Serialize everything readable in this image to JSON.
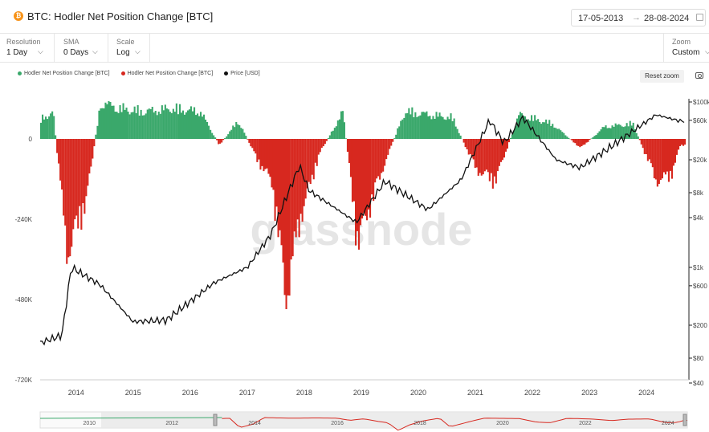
{
  "header": {
    "logo_glyph": "₿",
    "title": "BTC: Hodler Net Position Change [BTC]",
    "date_from": "17-05-2013",
    "date_to": "28-08-2024"
  },
  "controls": {
    "resolution": {
      "label": "Resolution",
      "value": "1 Day"
    },
    "sma": {
      "label": "SMA",
      "value": "0 Days"
    },
    "scale": {
      "label": "Scale",
      "value": "Log"
    },
    "zoom": {
      "label": "Zoom",
      "value": "Custom"
    }
  },
  "toolbar": {
    "reset_zoom_label": "Reset zoom"
  },
  "watermark": "glassnode",
  "chart_data": {
    "type": "bar",
    "title": "BTC: Hodler Net Position Change [BTC]",
    "series": [
      {
        "name": "Hodler Net Position Change [BTC]",
        "color": "#3aa86b",
        "kind": "positive bars"
      },
      {
        "name": "Hodler Net Position Change [BTC]",
        "color": "#d7281f",
        "kind": "negative bars"
      },
      {
        "name": "Price [USD]",
        "color": "#111111",
        "kind": "line",
        "axis": "right-log"
      }
    ],
    "x_ticks": [
      "2014",
      "2015",
      "2016",
      "2017",
      "2018",
      "2019",
      "2020",
      "2021",
      "2022",
      "2023",
      "2024"
    ],
    "y_left": {
      "ticks": [
        "0",
        "-240K",
        "-480K",
        "-720K"
      ],
      "values": [
        0,
        -240000,
        -480000,
        -720000
      ],
      "range": [
        -720000,
        120000
      ]
    },
    "y_right": {
      "scale": "log",
      "ticks": [
        "$100k",
        "$60k",
        "$20k",
        "$8k",
        "$4k",
        "$1k",
        "$600",
        "$200",
        "$80",
        "$40"
      ],
      "values": [
        100000,
        60000,
        20000,
        8000,
        4000,
        1000,
        600,
        200,
        80,
        40
      ],
      "range": [
        40,
        100000
      ]
    },
    "net_position_change": [
      {
        "date": "2013-05",
        "value": 60000
      },
      {
        "date": "2013-08",
        "value": 90000
      },
      {
        "date": "2013-11",
        "value": -380000
      },
      {
        "date": "2014-03",
        "value": -200000
      },
      {
        "date": "2014-06",
        "value": 120000
      },
      {
        "date": "2014-10",
        "value": 100000
      },
      {
        "date": "2015-03",
        "value": 90000
      },
      {
        "date": "2015-09",
        "value": 100000
      },
      {
        "date": "2016-03",
        "value": 90000
      },
      {
        "date": "2016-07",
        "value": -20000
      },
      {
        "date": "2016-11",
        "value": 60000
      },
      {
        "date": "2017-03",
        "value": -70000
      },
      {
        "date": "2017-06",
        "value": -140000
      },
      {
        "date": "2017-09",
        "value": -520000
      },
      {
        "date": "2017-12",
        "value": -260000
      },
      {
        "date": "2018-04",
        "value": -50000
      },
      {
        "date": "2018-09",
        "value": 90000
      },
      {
        "date": "2018-12",
        "value": -340000
      },
      {
        "date": "2019-06",
        "value": -70000
      },
      {
        "date": "2019-10",
        "value": 90000
      },
      {
        "date": "2020-03",
        "value": 80000
      },
      {
        "date": "2020-08",
        "value": 70000
      },
      {
        "date": "2021-01",
        "value": -100000
      },
      {
        "date": "2021-05",
        "value": -140000
      },
      {
        "date": "2021-10",
        "value": 80000
      },
      {
        "date": "2022-05",
        "value": 50000
      },
      {
        "date": "2022-11",
        "value": -30000
      },
      {
        "date": "2023-04",
        "value": 40000
      },
      {
        "date": "2023-10",
        "value": 50000
      },
      {
        "date": "2024-03",
        "value": -140000
      },
      {
        "date": "2024-06",
        "value": -120000
      },
      {
        "date": "2024-08",
        "value": -20000
      }
    ],
    "price": [
      {
        "date": "2013-05",
        "value": 120
      },
      {
        "date": "2013-10",
        "value": 150
      },
      {
        "date": "2013-12",
        "value": 1000
      },
      {
        "date": "2014-06",
        "value": 620
      },
      {
        "date": "2015-01",
        "value": 220
      },
      {
        "date": "2015-08",
        "value": 230
      },
      {
        "date": "2016-06",
        "value": 650
      },
      {
        "date": "2017-01",
        "value": 1000
      },
      {
        "date": "2017-06",
        "value": 2500
      },
      {
        "date": "2017-12",
        "value": 17000
      },
      {
        "date": "2018-02",
        "value": 8500
      },
      {
        "date": "2018-12",
        "value": 3500
      },
      {
        "date": "2019-06",
        "value": 11000
      },
      {
        "date": "2020-03",
        "value": 5000
      },
      {
        "date": "2020-10",
        "value": 11500
      },
      {
        "date": "2021-04",
        "value": 60000
      },
      {
        "date": "2021-07",
        "value": 32000
      },
      {
        "date": "2021-11",
        "value": 65000
      },
      {
        "date": "2022-06",
        "value": 20000
      },
      {
        "date": "2022-11",
        "value": 16000
      },
      {
        "date": "2023-06",
        "value": 30000
      },
      {
        "date": "2024-03",
        "value": 70000
      },
      {
        "date": "2024-08",
        "value": 59000
      }
    ],
    "navigator_ticks": [
      "2010",
      "2012",
      "2014",
      "2016",
      "2018",
      "2020",
      "2022",
      "2024"
    ],
    "legend_position": "top-left",
    "grid": false
  }
}
